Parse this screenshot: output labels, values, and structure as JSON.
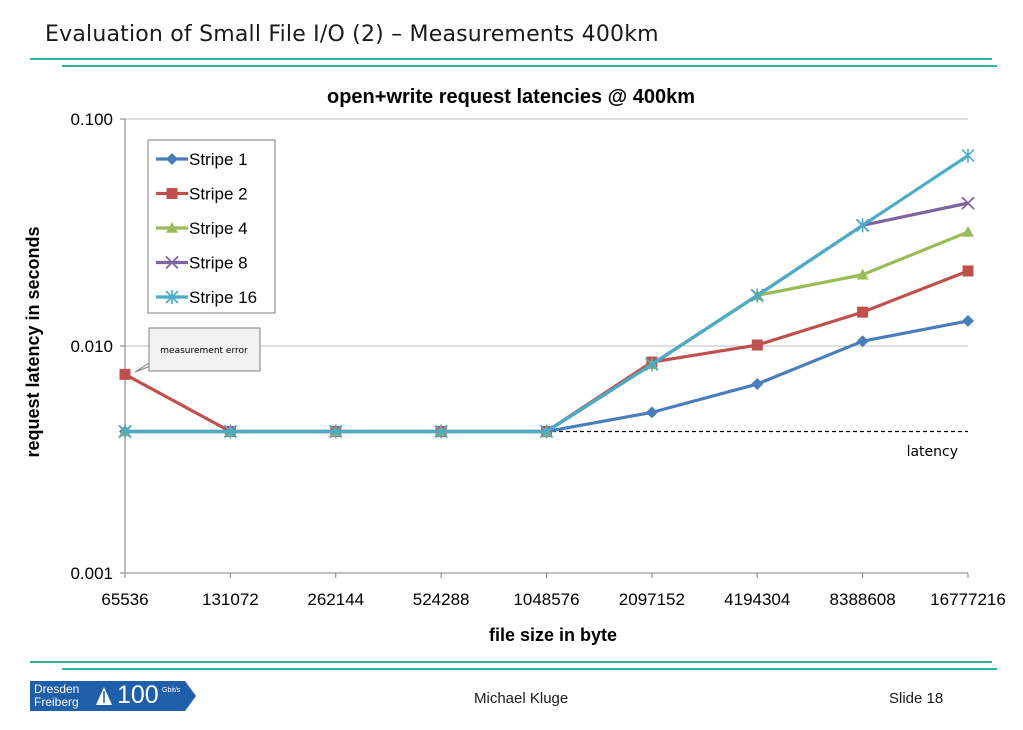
{
  "slide": {
    "title": "Evaluation of Small File I/O (2) – Measurements 400km",
    "author": "Michael Kluge",
    "slide_number": "Slide 18",
    "logo": {
      "line1": "Dresden",
      "line2": "Freiberg",
      "number": "100",
      "unit": "Gbit/s"
    },
    "accent_color": "#2ab5a5"
  },
  "chart_data": {
    "type": "line",
    "title": "open+write request latencies @ 400km",
    "xlabel": "file size in byte",
    "ylabel": "request latency in seconds",
    "y_scale": "log",
    "ylim": [
      0.001,
      0.1
    ],
    "y_ticks": [
      "0.001",
      "0.010",
      "0.100"
    ],
    "categories": [
      "65536",
      "131072",
      "262144",
      "524288",
      "1048576",
      "2097152",
      "4194304",
      "8388608",
      "16777216"
    ],
    "grid": "horizontal",
    "legend_position": "top-left",
    "series": [
      {
        "name": "Stripe 1",
        "color": "#4a7ebb",
        "marker": "diamond",
        "values": [
          0.0042,
          0.0042,
          0.0042,
          0.0042,
          0.0042,
          0.0051,
          0.0068,
          0.0105,
          0.0129
        ]
      },
      {
        "name": "Stripe 2",
        "color": "#c0504d",
        "marker": "square",
        "values": [
          0.0075,
          0.0042,
          0.0042,
          0.0042,
          0.0042,
          0.0085,
          0.0101,
          0.0141,
          0.0214
        ]
      },
      {
        "name": "Stripe 4",
        "color": "#9bbb59",
        "marker": "triangle",
        "values": [
          0.0042,
          0.0042,
          0.0042,
          0.0042,
          0.0042,
          0.0083,
          0.0167,
          0.0206,
          0.0318
        ]
      },
      {
        "name": "Stripe 8",
        "color": "#8064a2",
        "marker": "x",
        "values": [
          0.0042,
          0.0042,
          0.0042,
          0.0042,
          0.0042,
          0.0083,
          0.0167,
          0.034,
          0.0426
        ]
      },
      {
        "name": "Stripe 16",
        "color": "#4bacc6",
        "marker": "star",
        "values": [
          0.0042,
          0.0042,
          0.0042,
          0.0042,
          0.0042,
          0.0083,
          0.0167,
          0.034,
          0.069
        ]
      }
    ],
    "reference_line": {
      "label": "latency",
      "value": 0.0042,
      "style": "dashed"
    },
    "annotation": {
      "text": "measurement error",
      "target_series": "Stripe 2",
      "target_index": 0
    }
  }
}
